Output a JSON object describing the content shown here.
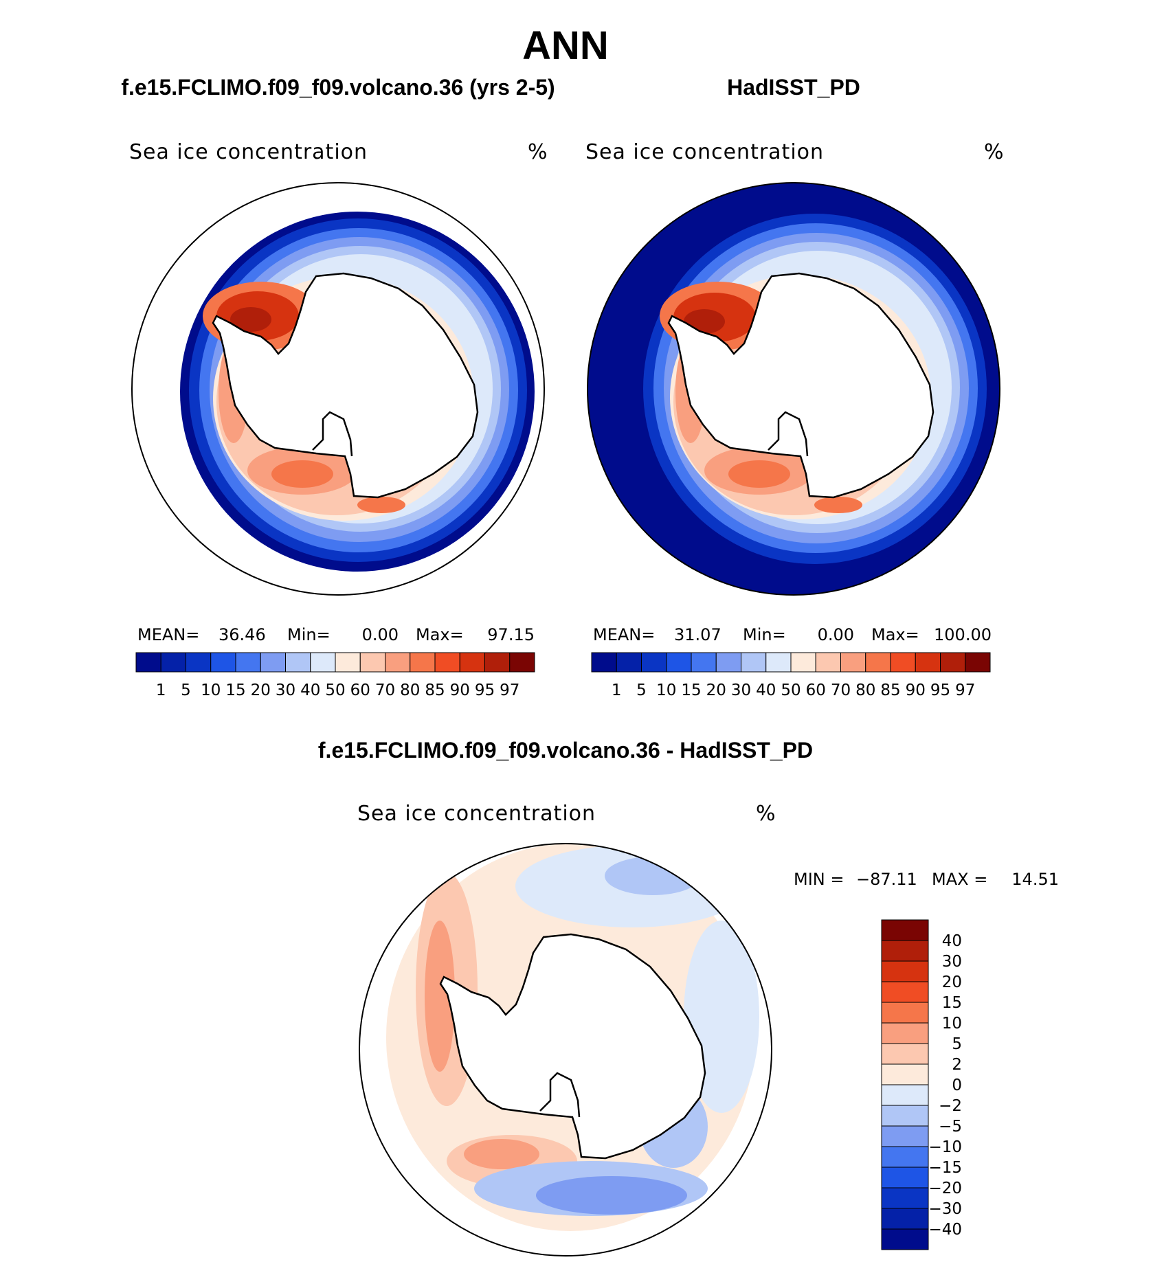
{
  "figure": {
    "title": "ANN",
    "left_title": "f.e15.FCLIMO.f09_f09.volcano.36 (yrs 2-5)",
    "right_title": "HadISST_PD",
    "diff_title": "f.e15.FCLIMO.f09_f09.volcano.36 - HadISST_PD"
  },
  "colors": {
    "conc": [
      "#000c8c",
      "#0421a8",
      "#0a35c4",
      "#1e55e6",
      "#4476f0",
      "#7e9cf2",
      "#b0c6f6",
      "#dde9fa",
      "#fdeadb",
      "#fcc8b0",
      "#f99f7f",
      "#f5764a",
      "#f04d24",
      "#d63310",
      "#b01f0a",
      "#7a0503"
    ],
    "diff": [
      "#7a0503",
      "#b01f0a",
      "#d63310",
      "#f04d24",
      "#f5764a",
      "#f99f7f",
      "#fcc8b0",
      "#fdeadb",
      "#dde9fa",
      "#b0c6f6",
      "#7e9cf2",
      "#4476f0",
      "#1e55e6",
      "#0a35c4",
      "#0421a8",
      "#000c8c"
    ]
  },
  "chart_data": [
    {
      "type": "heatmap",
      "name": "model",
      "title": "f.e15.FCLIMO.f09_f09.volcano.36 (yrs 2-5)",
      "field_label": "Sea ice concentration",
      "units": "%",
      "projection": "south polar stereographic",
      "stats": {
        "mean_label": "MEAN=",
        "mean": "36.46",
        "min_label": "Min=",
        "min": "0.00",
        "max_label": "Max=",
        "max": "97.15"
      },
      "colorbar_levels": [
        "1",
        "5",
        "10",
        "15",
        "20",
        "30",
        "40",
        "50",
        "60",
        "70",
        "80",
        "85",
        "90",
        "95",
        "97"
      ]
    },
    {
      "type": "heatmap",
      "name": "observations",
      "title": "HadISST_PD",
      "field_label": "Sea ice concentration",
      "units": "%",
      "projection": "south polar stereographic",
      "stats": {
        "mean_label": "MEAN=",
        "mean": "31.07",
        "min_label": "Min=",
        "min": "0.00",
        "max_label": "Max=",
        "max": "100.00"
      },
      "colorbar_levels": [
        "1",
        "5",
        "10",
        "15",
        "20",
        "30",
        "40",
        "50",
        "60",
        "70",
        "80",
        "85",
        "90",
        "95",
        "97"
      ]
    },
    {
      "type": "heatmap",
      "name": "difference",
      "title": "f.e15.FCLIMO.f09_f09.volcano.36 - HadISST_PD",
      "field_label": "Sea ice concentration",
      "units": "%",
      "projection": "south polar stereographic",
      "stats": {
        "min_label": "MIN =",
        "min": "−87.11",
        "max_label": "MAX =",
        "max": "14.51"
      },
      "colorbar_levels": [
        "40",
        "30",
        "20",
        "15",
        "10",
        "5",
        "2",
        "0",
        "−2",
        "−5",
        "−10",
        "−15",
        "−20",
        "−30",
        "−40"
      ]
    }
  ]
}
